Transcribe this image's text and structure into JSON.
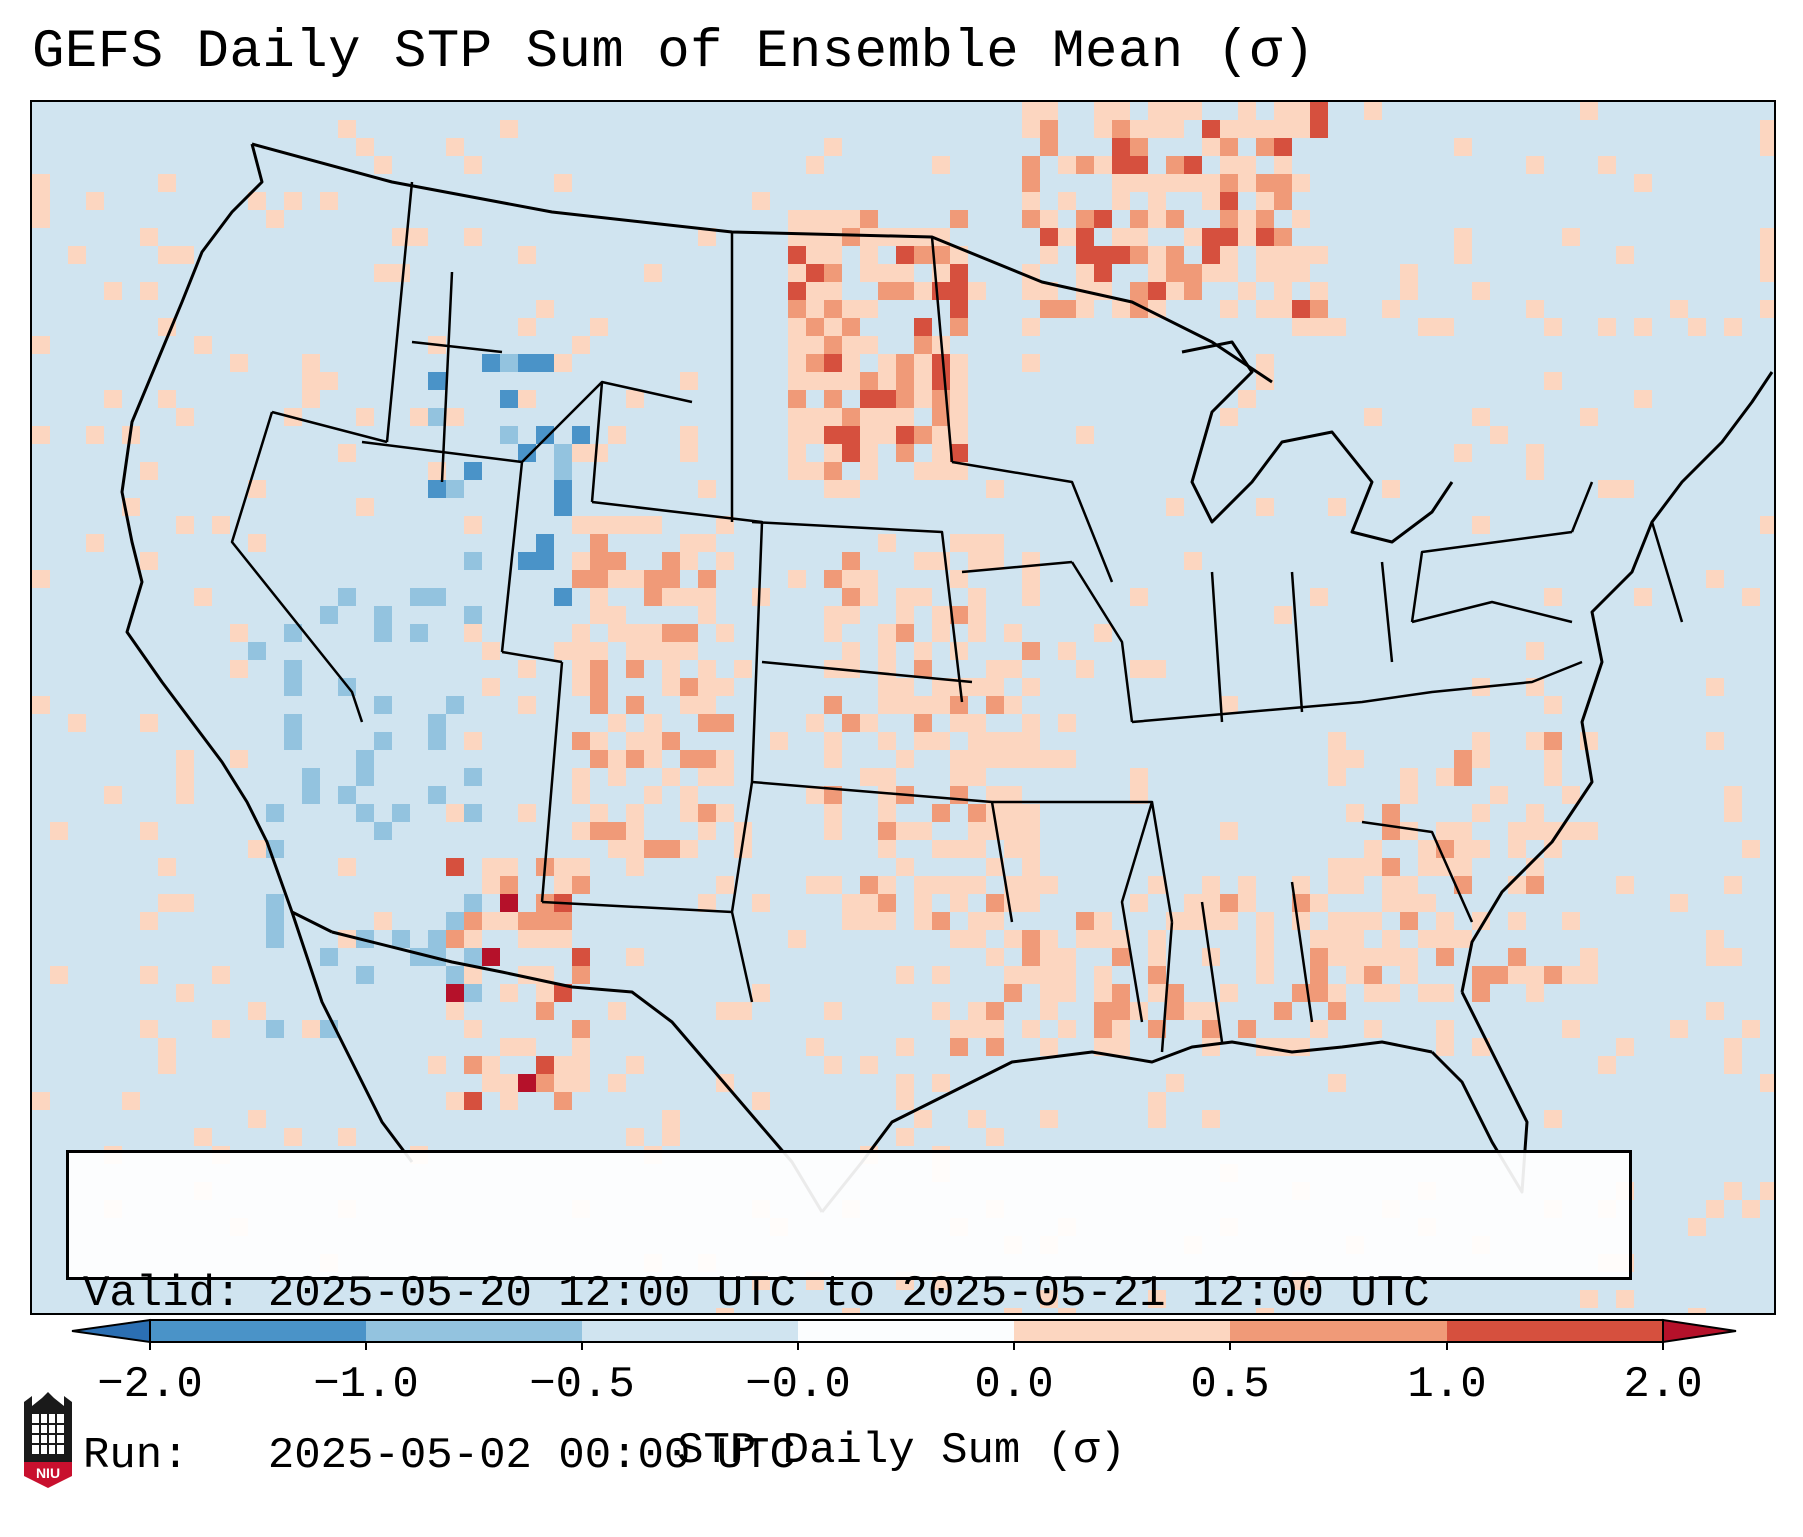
{
  "title": "GEFS Daily STP Sum of Ensemble Mean (σ)",
  "info": {
    "valid_label": "Valid:",
    "valid_value": "2025-05-20 12:00 UTC to 2025-05-21 12:00 UTC",
    "run_label": "Run:",
    "run_value": "2025-05-02 00:00 UTC"
  },
  "colorbar": {
    "label": "STP Daily Sum (σ)",
    "ticks": [
      "−2.0",
      "−1.0",
      "−0.5",
      "−0.0",
      "0.0",
      "0.5",
      "1.0",
      "2.0"
    ],
    "colors": [
      "#2b6fb3",
      "#4a93c8",
      "#93c3df",
      "#d0e4f0",
      "#fbfdfe",
      "#fcd6c0",
      "#f09a78",
      "#d6503e",
      "#b5112a"
    ]
  },
  "logo": {
    "text": "NIU",
    "icon": "niu-castle-icon"
  },
  "map": {
    "region": "Contiguous United States",
    "background_class": "-0.0",
    "anomaly_regions": [
      {
        "name": "northern-plains-upper-midwest",
        "category": "1.0"
      },
      {
        "name": "canadian-prairies",
        "category": "1.0"
      },
      {
        "name": "high-plains-front-range",
        "category": "0.5"
      },
      {
        "name": "mississippi-valley",
        "category": "0.0"
      },
      {
        "name": "gulf-coast",
        "category": "0.5"
      },
      {
        "name": "southeast-atlantic",
        "category": "0.0"
      },
      {
        "name": "northern-mexico",
        "category": "2.0"
      },
      {
        "name": "baja-sonora",
        "category": "-0.5"
      },
      {
        "name": "colorado-utah",
        "category": "-1.0"
      }
    ]
  }
}
